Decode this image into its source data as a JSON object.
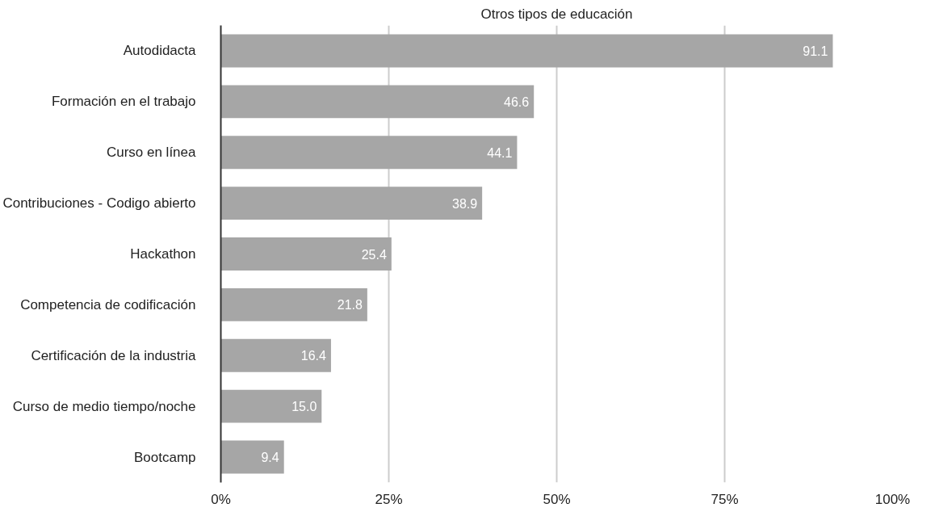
{
  "chart_data": {
    "type": "bar",
    "orientation": "horizontal",
    "title": "Otros tipos de educación",
    "categories": [
      "Autodidacta",
      "Formación en el trabajo",
      "Curso en línea",
      "Contribuciones - Codigo abierto",
      "Hackathon",
      "Competencia de codificación",
      "Certificación de la industria",
      "Curso de medio tiempo/noche",
      "Bootcamp"
    ],
    "values": [
      91.1,
      46.6,
      44.1,
      38.9,
      25.4,
      21.8,
      16.4,
      15.0,
      9.4
    ],
    "value_labels": [
      "91.1",
      "46.6",
      "44.1",
      "38.9",
      "25.4",
      "21.8",
      "16.4",
      "15.0",
      "9.4"
    ],
    "color": "#a6a6a6",
    "xlim": [
      0,
      100
    ],
    "xticks": [
      {
        "value": 0,
        "label": "0%"
      },
      {
        "value": 25,
        "label": "25%"
      },
      {
        "value": 50,
        "label": "50%"
      },
      {
        "value": 75,
        "label": "75%"
      },
      {
        "value": 100,
        "label": "100%"
      }
    ],
    "grid": "x"
  }
}
